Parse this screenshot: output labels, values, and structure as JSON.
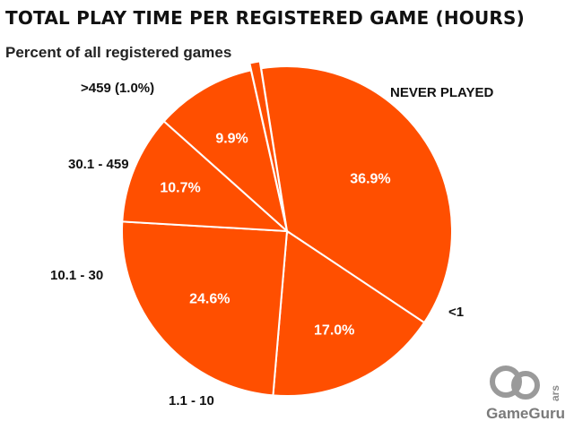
{
  "header": {
    "title": "TOTAL PLAY TIME PER REGISTERED GAME (HOURS)",
    "subtitle": "Percent of all registered games"
  },
  "chart_data": {
    "type": "pie",
    "title": "TOTAL PLAY TIME PER REGISTERED GAME (HOURS)",
    "subtitle": "Percent of all registered games",
    "slices": [
      {
        "label": "NEVER PLAYED",
        "value": 36.9,
        "value_label": "36.9%"
      },
      {
        "label": "<1",
        "value": 17.0,
        "value_label": "17.0%"
      },
      {
        "label": "1.1 - 10",
        "value": 24.6,
        "value_label": "24.6%"
      },
      {
        "label": "10.1 - 30",
        "value": 10.7,
        "value_label": "10.7%"
      },
      {
        "label": "30.1 - 459",
        "value": 9.9,
        "value_label": "9.9%"
      },
      {
        "label": ">459 (1.0%)",
        "value": 1.0,
        "value_label": ""
      }
    ],
    "colors": {
      "slice": "#ff4f00",
      "border": "#ffffff"
    },
    "legend": "none"
  },
  "watermark": {
    "brand": "GameGuru",
    "tag": "ars"
  }
}
